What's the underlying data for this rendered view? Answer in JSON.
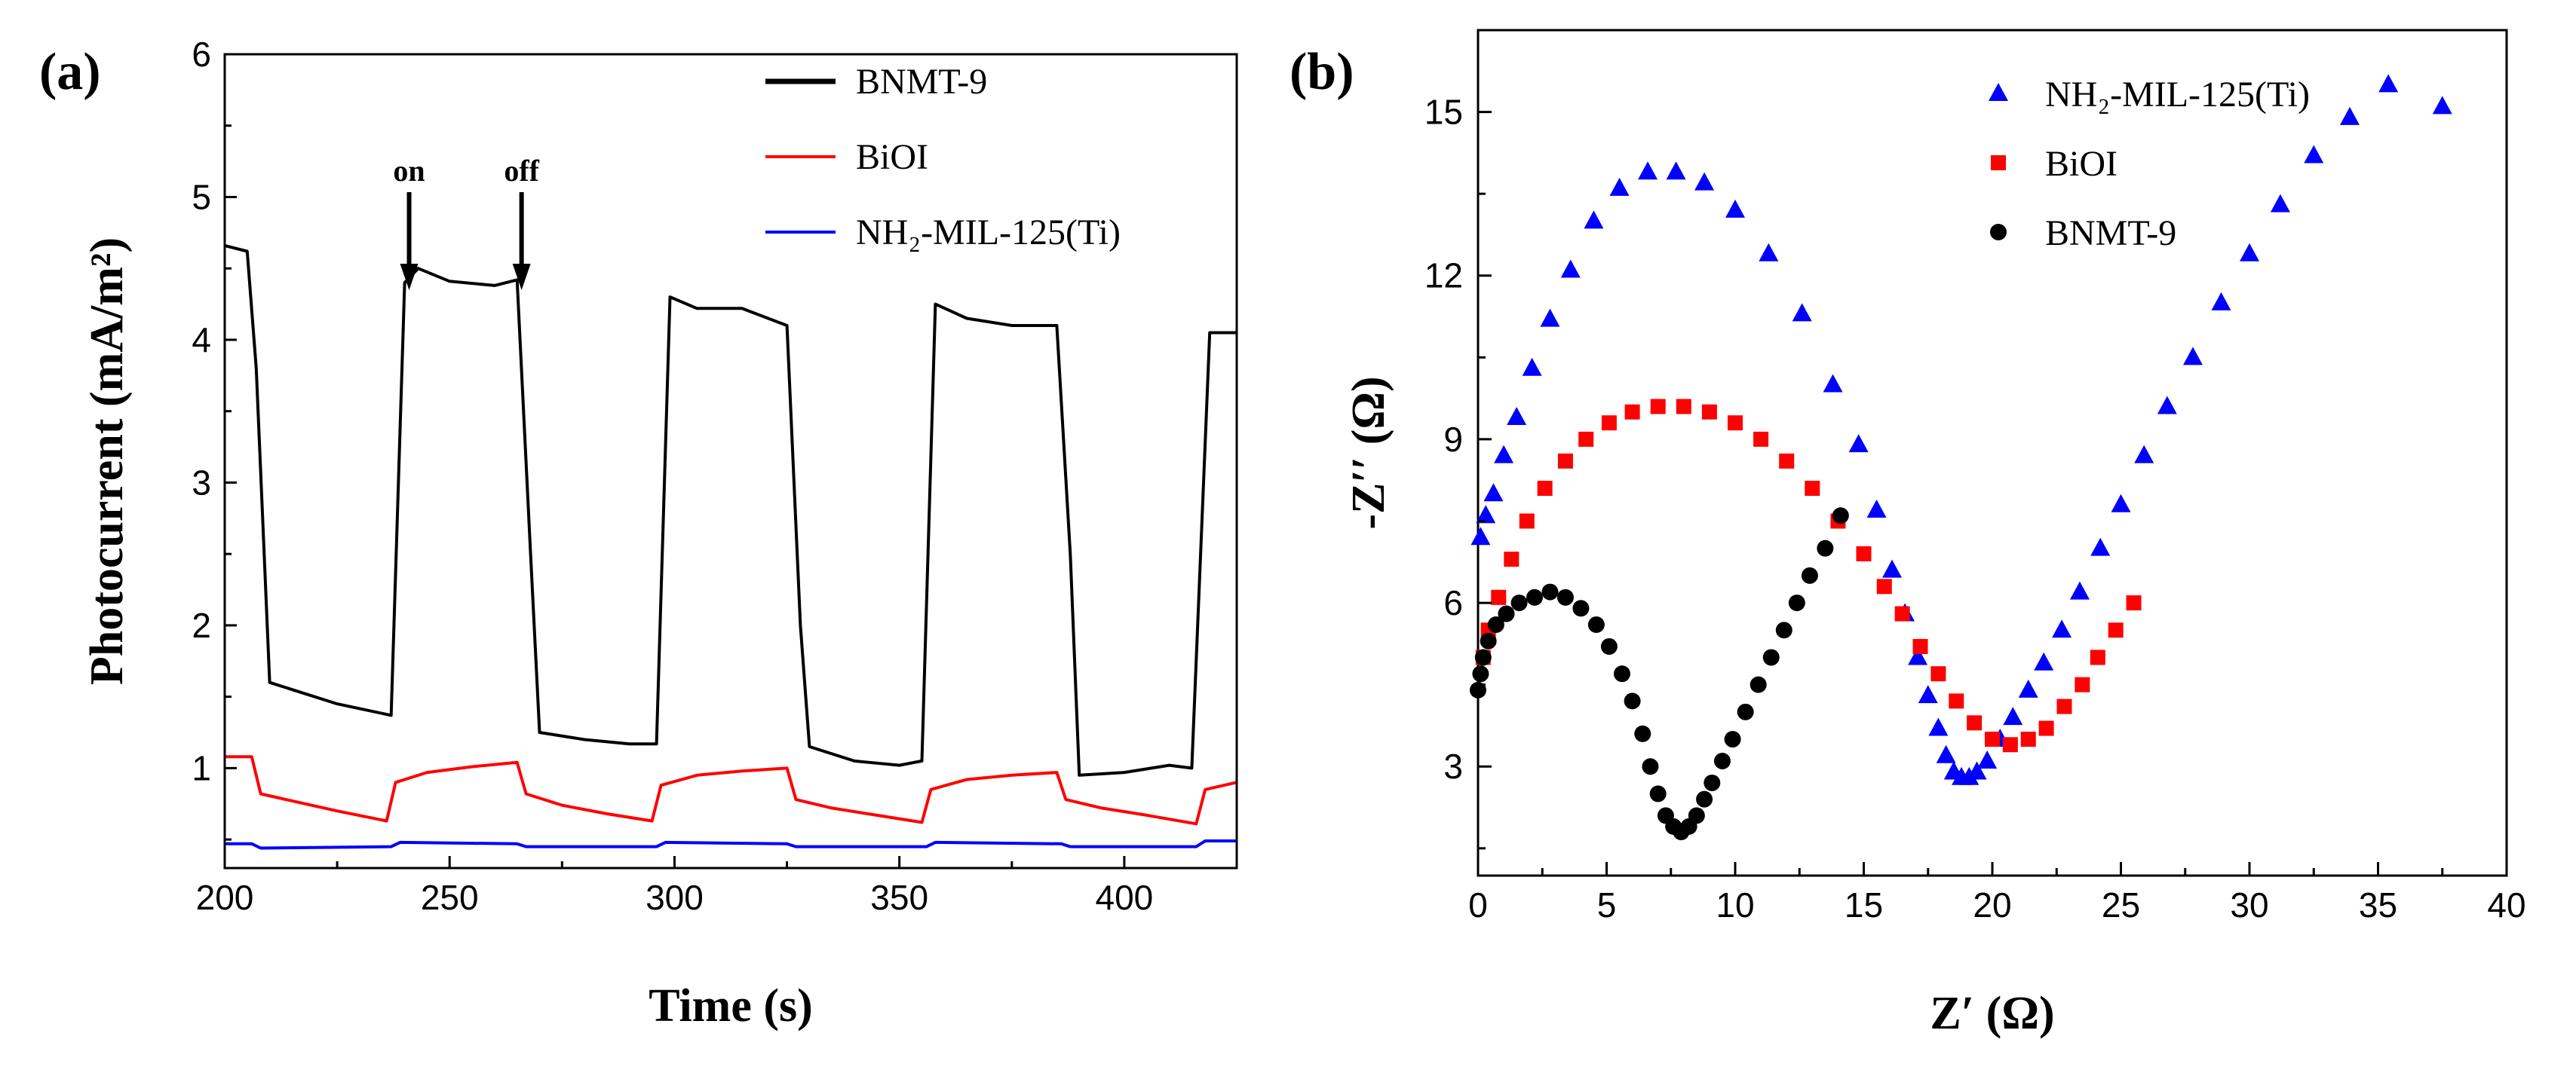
{
  "chart_data": [
    {
      "type": "line",
      "panel_label": "(a)",
      "title": "",
      "xlabel": "Time (s)",
      "ylabel": "Photocurrent (mA/m²)",
      "xlim": [
        200,
        425
      ],
      "ylim": [
        0.3,
        6
      ],
      "xticks": [
        200,
        250,
        300,
        350,
        400
      ],
      "yticks": [
        1,
        2,
        3,
        4,
        5,
        6
      ],
      "legend_position": "top-right",
      "annotations": [
        {
          "label": "on",
          "x": 241
        },
        {
          "label": "off",
          "x": 266
        }
      ],
      "series": [
        {
          "name": "BNMT-9",
          "color": "#000000",
          "points": [
            [
              200,
              4.66
            ],
            [
              205,
              4.62
            ],
            [
              207,
              3.8
            ],
            [
              210,
              1.6
            ],
            [
              215,
              1.55
            ],
            [
              225,
              1.45
            ],
            [
              237,
              1.37
            ],
            [
              240,
              4.4
            ],
            [
              243,
              4.5
            ],
            [
              250,
              4.41
            ],
            [
              260,
              4.38
            ],
            [
              265,
              4.42
            ],
            [
              268,
              2.5
            ],
            [
              270,
              1.25
            ],
            [
              280,
              1.2
            ],
            [
              290,
              1.17
            ],
            [
              296,
              1.17
            ],
            [
              299,
              4.3
            ],
            [
              305,
              4.22
            ],
            [
              315,
              4.22
            ],
            [
              325,
              4.1
            ],
            [
              328,
              2.0
            ],
            [
              330,
              1.15
            ],
            [
              340,
              1.05
            ],
            [
              350,
              1.02
            ],
            [
              355,
              1.05
            ],
            [
              358,
              4.25
            ],
            [
              365,
              4.15
            ],
            [
              375,
              4.1
            ],
            [
              385,
              4.1
            ],
            [
              388,
              2.5
            ],
            [
              390,
              0.95
            ],
            [
              400,
              0.97
            ],
            [
              410,
              1.02
            ],
            [
              415,
              1.0
            ],
            [
              419,
              4.05
            ],
            [
              425,
              4.05
            ]
          ]
        },
        {
          "name": "BiOI",
          "color": "#ff0000",
          "points": [
            [
              200,
              1.08
            ],
            [
              206,
              1.08
            ],
            [
              208,
              0.82
            ],
            [
              215,
              0.77
            ],
            [
              225,
              0.7
            ],
            [
              236,
              0.63
            ],
            [
              238,
              0.9
            ],
            [
              245,
              0.97
            ],
            [
              255,
              1.01
            ],
            [
              265,
              1.04
            ],
            [
              267,
              0.82
            ],
            [
              275,
              0.74
            ],
            [
              285,
              0.68
            ],
            [
              295,
              0.63
            ],
            [
              297,
              0.88
            ],
            [
              305,
              0.95
            ],
            [
              315,
              0.98
            ],
            [
              325,
              1.0
            ],
            [
              327,
              0.78
            ],
            [
              335,
              0.72
            ],
            [
              345,
              0.67
            ],
            [
              355,
              0.62
            ],
            [
              357,
              0.85
            ],
            [
              365,
              0.92
            ],
            [
              375,
              0.95
            ],
            [
              385,
              0.97
            ],
            [
              387,
              0.78
            ],
            [
              395,
              0.72
            ],
            [
              405,
              0.67
            ],
            [
              416,
              0.61
            ],
            [
              418,
              0.85
            ],
            [
              425,
              0.9
            ]
          ]
        },
        {
          "name": "NH₂-MIL-125(Ti)",
          "color": "#0000ff",
          "points": [
            [
              200,
              0.47
            ],
            [
              206,
              0.47
            ],
            [
              208,
              0.44
            ],
            [
              237,
              0.45
            ],
            [
              239,
              0.48
            ],
            [
              265,
              0.47
            ],
            [
              267,
              0.45
            ],
            [
              296,
              0.45
            ],
            [
              298,
              0.48
            ],
            [
              325,
              0.47
            ],
            [
              327,
              0.45
            ],
            [
              356,
              0.45
            ],
            [
              358,
              0.48
            ],
            [
              386,
              0.47
            ],
            [
              388,
              0.45
            ],
            [
              416,
              0.45
            ],
            [
              418,
              0.49
            ],
            [
              425,
              0.49
            ]
          ]
        }
      ]
    },
    {
      "type": "scatter",
      "panel_label": "(b)",
      "title": "",
      "xlabel": "Z′ (Ω)",
      "ylabel": "-Z′′ (Ω)",
      "xlim": [
        0,
        40
      ],
      "ylim": [
        1,
        16.5
      ],
      "xticks": [
        0,
        5,
        10,
        15,
        20,
        25,
        30,
        35,
        40
      ],
      "yticks": [
        3,
        6,
        9,
        12,
        15
      ],
      "legend_position": "top-right",
      "series": [
        {
          "name": "NH₂-MIL-125(Ti)",
          "color": "#0000ff",
          "marker": "triangle",
          "points": [
            [
              0.1,
              7.2
            ],
            [
              0.3,
              7.6
            ],
            [
              0.6,
              8.0
            ],
            [
              1.0,
              8.7
            ],
            [
              1.5,
              9.4
            ],
            [
              2.1,
              10.3
            ],
            [
              2.8,
              11.2
            ],
            [
              3.6,
              12.1
            ],
            [
              4.5,
              13.0
            ],
            [
              5.5,
              13.6
            ],
            [
              6.6,
              13.9
            ],
            [
              7.7,
              13.9
            ],
            [
              8.8,
              13.7
            ],
            [
              10.0,
              13.2
            ],
            [
              11.3,
              12.4
            ],
            [
              12.6,
              11.3
            ],
            [
              13.8,
              10.0
            ],
            [
              14.8,
              8.9
            ],
            [
              15.5,
              7.7
            ],
            [
              16.1,
              6.6
            ],
            [
              16.6,
              5.8
            ],
            [
              17.1,
              5.0
            ],
            [
              17.5,
              4.3
            ],
            [
              17.9,
              3.7
            ],
            [
              18.2,
              3.2
            ],
            [
              18.5,
              2.9
            ],
            [
              18.8,
              2.8
            ],
            [
              19.1,
              2.8
            ],
            [
              19.4,
              2.9
            ],
            [
              19.8,
              3.1
            ],
            [
              20.3,
              3.5
            ],
            [
              20.8,
              3.9
            ],
            [
              21.4,
              4.4
            ],
            [
              22.0,
              4.9
            ],
            [
              22.7,
              5.5
            ],
            [
              23.4,
              6.2
            ],
            [
              24.2,
              7.0
            ],
            [
              25.0,
              7.8
            ],
            [
              25.9,
              8.7
            ],
            [
              26.8,
              9.6
            ],
            [
              27.8,
              10.5
            ],
            [
              28.9,
              11.5
            ],
            [
              30.0,
              12.4
            ],
            [
              31.2,
              13.3
            ],
            [
              32.5,
              14.2
            ],
            [
              33.9,
              14.9
            ],
            [
              35.4,
              15.5
            ],
            [
              37.5,
              15.1
            ]
          ]
        },
        {
          "name": "BiOI",
          "color": "#ff0000",
          "marker": "square",
          "points": [
            [
              0.2,
              5.0
            ],
            [
              0.4,
              5.5
            ],
            [
              0.8,
              6.1
            ],
            [
              1.3,
              6.8
            ],
            [
              1.9,
              7.5
            ],
            [
              2.6,
              8.1
            ],
            [
              3.4,
              8.6
            ],
            [
              4.2,
              9.0
            ],
            [
              5.1,
              9.3
            ],
            [
              6.0,
              9.5
            ],
            [
              7.0,
              9.6
            ],
            [
              8.0,
              9.6
            ],
            [
              9.0,
              9.5
            ],
            [
              10.0,
              9.3
            ],
            [
              11.0,
              9.0
            ],
            [
              12.0,
              8.6
            ],
            [
              13.0,
              8.1
            ],
            [
              14.0,
              7.5
            ],
            [
              15.0,
              6.9
            ],
            [
              15.8,
              6.3
            ],
            [
              16.5,
              5.8
            ],
            [
              17.2,
              5.2
            ],
            [
              17.9,
              4.7
            ],
            [
              18.6,
              4.2
            ],
            [
              19.3,
              3.8
            ],
            [
              20.0,
              3.5
            ],
            [
              20.7,
              3.4
            ],
            [
              21.4,
              3.5
            ],
            [
              22.1,
              3.7
            ],
            [
              22.8,
              4.1
            ],
            [
              23.5,
              4.5
            ],
            [
              24.1,
              5.0
            ],
            [
              24.8,
              5.5
            ],
            [
              25.5,
              6.0
            ]
          ]
        },
        {
          "name": "BNMT-9",
          "color": "#000000",
          "marker": "circle",
          "points": [
            [
              0.0,
              4.4
            ],
            [
              0.1,
              4.7
            ],
            [
              0.2,
              5.0
            ],
            [
              0.4,
              5.3
            ],
            [
              0.7,
              5.6
            ],
            [
              1.1,
              5.8
            ],
            [
              1.6,
              6.0
            ],
            [
              2.2,
              6.1
            ],
            [
              2.8,
              6.2
            ],
            [
              3.4,
              6.1
            ],
            [
              4.0,
              5.9
            ],
            [
              4.6,
              5.6
            ],
            [
              5.1,
              5.2
            ],
            [
              5.6,
              4.7
            ],
            [
              6.0,
              4.2
            ],
            [
              6.4,
              3.6
            ],
            [
              6.7,
              3.0
            ],
            [
              7.0,
              2.5
            ],
            [
              7.3,
              2.1
            ],
            [
              7.6,
              1.9
            ],
            [
              7.9,
              1.8
            ],
            [
              8.2,
              1.9
            ],
            [
              8.5,
              2.1
            ],
            [
              8.8,
              2.4
            ],
            [
              9.1,
              2.7
            ],
            [
              9.5,
              3.1
            ],
            [
              9.9,
              3.5
            ],
            [
              10.4,
              4.0
            ],
            [
              10.9,
              4.5
            ],
            [
              11.4,
              5.0
            ],
            [
              11.9,
              5.5
            ],
            [
              12.4,
              6.0
            ],
            [
              12.9,
              6.5
            ],
            [
              13.5,
              7.0
            ],
            [
              14.1,
              7.6
            ]
          ]
        }
      ]
    }
  ]
}
